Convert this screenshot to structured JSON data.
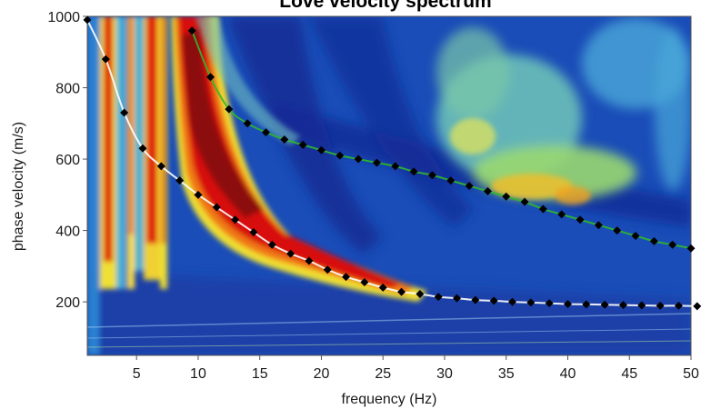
{
  "chart_data": {
    "type": "heatmap",
    "title": "Love velocity spectrum",
    "xlabel": "frequency (Hz)",
    "ylabel": "phase velocity (m/s)",
    "xlim": [
      1,
      50
    ],
    "ylim": [
      50,
      1000
    ],
    "x_ticks": [
      5,
      10,
      15,
      20,
      25,
      30,
      35,
      40,
      45,
      50
    ],
    "y_ticks": [
      200,
      400,
      600,
      800,
      1000
    ],
    "colormap": [
      "#1030a0",
      "#1e5ec8",
      "#3aa0d8",
      "#e6e830",
      "#f08018",
      "#d01010",
      "#901010"
    ],
    "grid": false,
    "series": [
      {
        "color": "#ffffff",
        "points": [
          [
            1.0,
            990
          ],
          [
            2.5,
            880
          ],
          [
            4.0,
            730
          ],
          [
            5.5,
            630
          ],
          [
            7.0,
            580
          ],
          [
            8.5,
            540
          ],
          [
            10.0,
            500
          ],
          [
            11.5,
            465
          ],
          [
            13.0,
            430
          ],
          [
            14.5,
            395
          ],
          [
            16.0,
            360
          ],
          [
            17.5,
            335
          ],
          [
            19.0,
            315
          ],
          [
            20.5,
            290
          ],
          [
            22.0,
            270
          ],
          [
            23.5,
            255
          ],
          [
            25.0,
            240
          ],
          [
            26.5,
            228
          ],
          [
            28.0,
            222
          ],
          [
            29.5,
            214
          ],
          [
            31.0,
            210
          ],
          [
            32.5,
            205
          ],
          [
            34.0,
            203
          ],
          [
            35.5,
            200
          ],
          [
            37.0,
            198
          ],
          [
            38.5,
            196
          ],
          [
            40.0,
            194
          ],
          [
            41.5,
            193
          ],
          [
            43.0,
            192
          ],
          [
            44.5,
            191
          ],
          [
            46.0,
            190
          ],
          [
            47.5,
            189
          ],
          [
            49.0,
            189
          ],
          [
            50.5,
            188
          ]
        ]
      },
      {
        "color": "#2eb82e",
        "points": [
          [
            9.5,
            960
          ],
          [
            11.0,
            830
          ],
          [
            12.5,
            740
          ],
          [
            14.0,
            700
          ],
          [
            15.5,
            675
          ],
          [
            17.0,
            655
          ],
          [
            18.5,
            640
          ],
          [
            20.0,
            625
          ],
          [
            21.5,
            610
          ],
          [
            23.0,
            600
          ],
          [
            24.5,
            590
          ],
          [
            26.0,
            580
          ],
          [
            27.5,
            565
          ],
          [
            29.0,
            555
          ],
          [
            30.5,
            540
          ],
          [
            32.0,
            525
          ],
          [
            33.5,
            510
          ],
          [
            35.0,
            495
          ],
          [
            36.5,
            480
          ],
          [
            38.0,
            460
          ],
          [
            39.5,
            445
          ],
          [
            41.0,
            430
          ],
          [
            42.5,
            415
          ],
          [
            44.0,
            400
          ],
          [
            45.5,
            385
          ],
          [
            47.0,
            370
          ],
          [
            48.5,
            360
          ],
          [
            50.0,
            350
          ]
        ]
      }
    ]
  }
}
